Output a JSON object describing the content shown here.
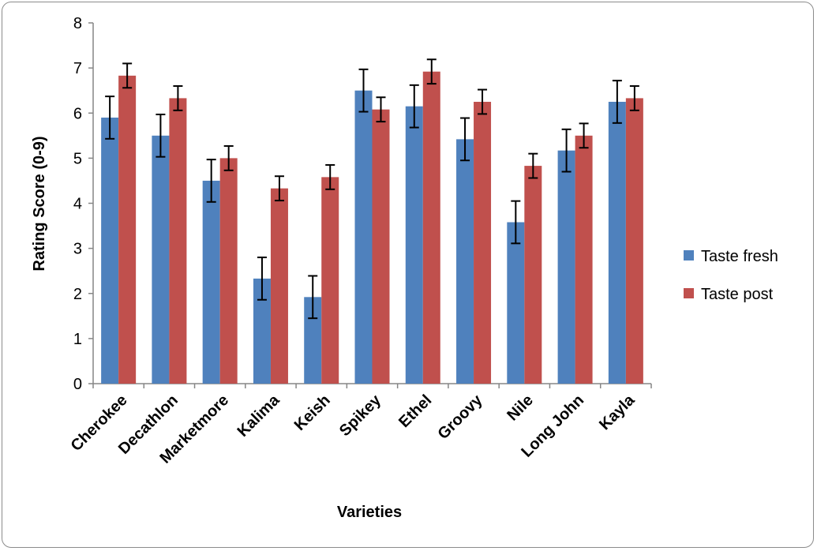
{
  "chart_data": {
    "type": "bar",
    "xlabel": "Varieties",
    "ylabel": "Rating Score (0-9)",
    "ylim": [
      0,
      8
    ],
    "yticks": [
      0,
      1,
      2,
      3,
      4,
      5,
      6,
      7,
      8
    ],
    "grid": false,
    "legend_position": "right",
    "error_bars": true,
    "categories": [
      "Cherokee",
      "Decathlon",
      "Marketmore",
      "Kalima",
      "Keish",
      "Spikey",
      "Ethel",
      "Groovy",
      "Nile",
      "Long John",
      "Kayla"
    ],
    "series": [
      {
        "name": "Taste fresh",
        "color": "#4F81BD",
        "values": [
          5.9,
          5.5,
          4.5,
          2.33,
          1.92,
          6.5,
          6.15,
          5.42,
          3.58,
          5.17,
          6.25
        ],
        "errors": [
          0.47,
          0.47,
          0.47,
          0.47,
          0.47,
          0.47,
          0.47,
          0.47,
          0.47,
          0.47,
          0.47
        ]
      },
      {
        "name": "Taste post",
        "color": "#C0504D",
        "values": [
          6.83,
          6.33,
          5.0,
          4.33,
          4.58,
          6.08,
          6.92,
          6.25,
          4.83,
          5.5,
          6.33
        ],
        "errors": [
          0.27,
          0.27,
          0.27,
          0.27,
          0.27,
          0.27,
          0.27,
          0.27,
          0.27,
          0.27,
          0.27
        ]
      }
    ]
  }
}
